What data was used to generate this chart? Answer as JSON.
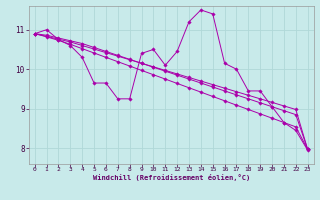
{
  "xlabel": "Windchill (Refroidissement éolien,°C)",
  "bg_color": "#c8eaea",
  "line_color": "#aa00aa",
  "grid_color": "#b0d8d8",
  "xlim": [
    -0.5,
    23.5
  ],
  "ylim": [
    7.6,
    11.6
  ],
  "xticks": [
    0,
    1,
    2,
    3,
    4,
    5,
    6,
    7,
    8,
    9,
    10,
    11,
    12,
    13,
    14,
    15,
    16,
    17,
    18,
    19,
    20,
    21,
    22,
    23
  ],
  "yticks": [
    8,
    9,
    10,
    11
  ],
  "series1": [
    10.9,
    11.0,
    10.75,
    10.6,
    10.3,
    9.65,
    9.65,
    9.25,
    9.25,
    10.4,
    10.5,
    10.1,
    10.45,
    11.2,
    11.5,
    11.4,
    10.15,
    10.0,
    9.45,
    9.45,
    9.05,
    8.65,
    8.45,
    7.95
  ],
  "series2": [
    10.9,
    10.82,
    10.73,
    10.63,
    10.52,
    10.41,
    10.3,
    10.19,
    10.08,
    9.97,
    9.86,
    9.75,
    9.64,
    9.53,
    9.42,
    9.31,
    9.2,
    9.09,
    8.98,
    8.87,
    8.76,
    8.65,
    8.54,
    7.97
  ],
  "series3": [
    10.9,
    10.83,
    10.76,
    10.69,
    10.6,
    10.51,
    10.42,
    10.33,
    10.24,
    10.15,
    10.06,
    9.97,
    9.88,
    9.79,
    9.7,
    9.61,
    9.52,
    9.43,
    9.34,
    9.25,
    9.16,
    9.07,
    8.98,
    7.97
  ],
  "series4": [
    10.9,
    10.86,
    10.79,
    10.72,
    10.65,
    10.55,
    10.45,
    10.35,
    10.25,
    10.15,
    10.05,
    9.95,
    9.85,
    9.75,
    9.65,
    9.55,
    9.45,
    9.35,
    9.25,
    9.15,
    9.05,
    8.95,
    8.85,
    7.97
  ]
}
